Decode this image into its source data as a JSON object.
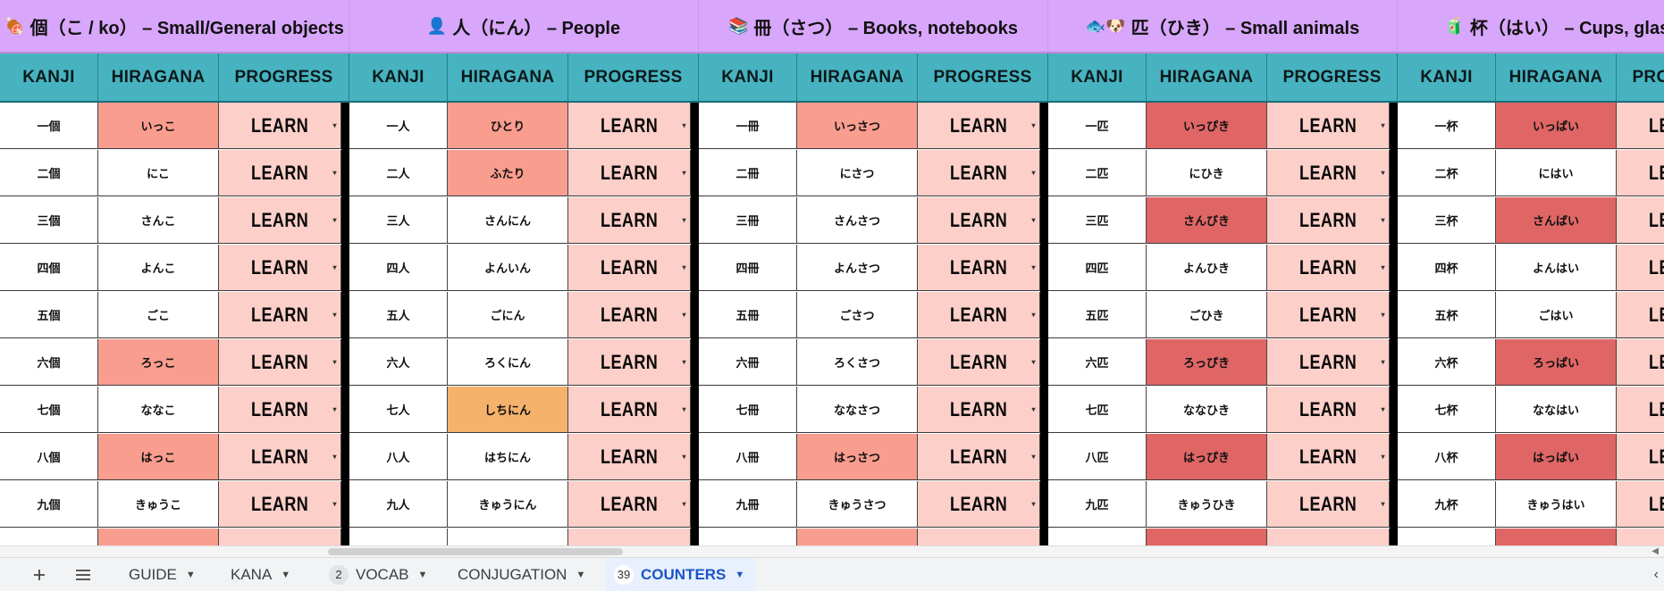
{
  "groups": [
    {
      "emoji": "🍖",
      "title": "個（こ / ko） – Small/General objects",
      "headers": [
        "KANJI",
        "HIRAGANA",
        "PROGRESS"
      ],
      "rows": [
        {
          "kanji": "一個",
          "hiragana": "いっこ",
          "hl": "#f99d8f",
          "progress": "LEARN"
        },
        {
          "kanji": "二個",
          "hiragana": "にこ",
          "hl": "",
          "progress": "LEARN"
        },
        {
          "kanji": "三個",
          "hiragana": "さんこ",
          "hl": "",
          "progress": "LEARN"
        },
        {
          "kanji": "四個",
          "hiragana": "よんこ",
          "hl": "",
          "progress": "LEARN"
        },
        {
          "kanji": "五個",
          "hiragana": "ごこ",
          "hl": "",
          "progress": "LEARN"
        },
        {
          "kanji": "六個",
          "hiragana": "ろっこ",
          "hl": "#f99d8f",
          "progress": "LEARN"
        },
        {
          "kanji": "七個",
          "hiragana": "ななこ",
          "hl": "",
          "progress": "LEARN"
        },
        {
          "kanji": "八個",
          "hiragana": "はっこ",
          "hl": "#f99d8f",
          "progress": "LEARN"
        },
        {
          "kanji": "九個",
          "hiragana": "きゅうこ",
          "hl": "",
          "progress": "LEARN"
        },
        {
          "kanji": "",
          "hiragana": "",
          "hl": "#f99d8f",
          "progress": ""
        }
      ]
    },
    {
      "emoji": "👤",
      "title": "人（にん） – People",
      "headers": [
        "KANJI",
        "HIRAGANA",
        "PROGRESS"
      ],
      "rows": [
        {
          "kanji": "一人",
          "hiragana": "ひとり",
          "hl": "#f99d8f",
          "progress": "LEARN"
        },
        {
          "kanji": "二人",
          "hiragana": "ふたり",
          "hl": "#f99d8f",
          "progress": "LEARN"
        },
        {
          "kanji": "三人",
          "hiragana": "さんにん",
          "hl": "",
          "progress": "LEARN"
        },
        {
          "kanji": "四人",
          "hiragana": "よんいん",
          "hl": "",
          "progress": "LEARN"
        },
        {
          "kanji": "五人",
          "hiragana": "ごにん",
          "hl": "",
          "progress": "LEARN"
        },
        {
          "kanji": "六人",
          "hiragana": "ろくにん",
          "hl": "",
          "progress": "LEARN"
        },
        {
          "kanji": "七人",
          "hiragana": "しちにん",
          "hl": "#f5b26c",
          "progress": "LEARN"
        },
        {
          "kanji": "八人",
          "hiragana": "はちにん",
          "hl": "",
          "progress": "LEARN"
        },
        {
          "kanji": "九人",
          "hiragana": "きゅうにん",
          "hl": "",
          "progress": "LEARN"
        },
        {
          "kanji": "",
          "hiragana": "",
          "hl": "",
          "progress": ""
        }
      ]
    },
    {
      "emoji": "📚",
      "title": "冊（さつ） – Books, notebooks",
      "headers": [
        "KANJI",
        "HIRAGANA",
        "PROGRESS"
      ],
      "rows": [
        {
          "kanji": "一冊",
          "hiragana": "いっさつ",
          "hl": "#f99d8f",
          "progress": "LEARN"
        },
        {
          "kanji": "二冊",
          "hiragana": "にさつ",
          "hl": "",
          "progress": "LEARN"
        },
        {
          "kanji": "三冊",
          "hiragana": "さんさつ",
          "hl": "",
          "progress": "LEARN"
        },
        {
          "kanji": "四冊",
          "hiragana": "よんさつ",
          "hl": "",
          "progress": "LEARN"
        },
        {
          "kanji": "五冊",
          "hiragana": "ごさつ",
          "hl": "",
          "progress": "LEARN"
        },
        {
          "kanji": "六冊",
          "hiragana": "ろくさつ",
          "hl": "",
          "progress": "LEARN"
        },
        {
          "kanji": "七冊",
          "hiragana": "ななさつ",
          "hl": "",
          "progress": "LEARN"
        },
        {
          "kanji": "八冊",
          "hiragana": "はっさつ",
          "hl": "#f99d8f",
          "progress": "LEARN"
        },
        {
          "kanji": "九冊",
          "hiragana": "きゅうさつ",
          "hl": "",
          "progress": "LEARN"
        },
        {
          "kanji": "",
          "hiragana": "",
          "hl": "#f99d8f",
          "progress": ""
        }
      ]
    },
    {
      "emoji": "🐟🐶",
      "title": "匹（ひき） – Small animals",
      "headers": [
        "KANJI",
        "HIRAGANA",
        "PROGRESS"
      ],
      "rows": [
        {
          "kanji": "一匹",
          "hiragana": "いっぴき",
          "hl": "#e06666",
          "progress": "LEARN"
        },
        {
          "kanji": "二匹",
          "hiragana": "にひき",
          "hl": "",
          "progress": "LEARN"
        },
        {
          "kanji": "三匹",
          "hiragana": "さんびき",
          "hl": "#e06666",
          "progress": "LEARN"
        },
        {
          "kanji": "四匹",
          "hiragana": "よんひき",
          "hl": "",
          "progress": "LEARN"
        },
        {
          "kanji": "五匹",
          "hiragana": "ごひき",
          "hl": "",
          "progress": "LEARN"
        },
        {
          "kanji": "六匹",
          "hiragana": "ろっぴき",
          "hl": "#e06666",
          "progress": "LEARN"
        },
        {
          "kanji": "七匹",
          "hiragana": "ななひき",
          "hl": "",
          "progress": "LEARN"
        },
        {
          "kanji": "八匹",
          "hiragana": "はっぴき",
          "hl": "#e06666",
          "progress": "LEARN"
        },
        {
          "kanji": "九匹",
          "hiragana": "きゅうひき",
          "hl": "",
          "progress": "LEARN"
        },
        {
          "kanji": "",
          "hiragana": "",
          "hl": "#e06666",
          "progress": ""
        }
      ]
    },
    {
      "emoji": "🧃",
      "title": "杯（はい） – Cups, glasses",
      "headers": [
        "KANJI",
        "HIRAGANA",
        "PROGRESS"
      ],
      "rows": [
        {
          "kanji": "一杯",
          "hiragana": "いっぱい",
          "hl": "#e06666",
          "progress": "LEARN"
        },
        {
          "kanji": "二杯",
          "hiragana": "にはい",
          "hl": "",
          "progress": "LEARN"
        },
        {
          "kanji": "三杯",
          "hiragana": "さんばい",
          "hl": "#e06666",
          "progress": "LEARN"
        },
        {
          "kanji": "四杯",
          "hiragana": "よんはい",
          "hl": "",
          "progress": "LEARN"
        },
        {
          "kanji": "五杯",
          "hiragana": "ごはい",
          "hl": "",
          "progress": "LEARN"
        },
        {
          "kanji": "六杯",
          "hiragana": "ろっぱい",
          "hl": "#e06666",
          "progress": "LEARN"
        },
        {
          "kanji": "七杯",
          "hiragana": "ななはい",
          "hl": "",
          "progress": "LEARN"
        },
        {
          "kanji": "八杯",
          "hiragana": "はっぱい",
          "hl": "#e06666",
          "progress": "LEARN"
        },
        {
          "kanji": "九杯",
          "hiragana": "きゅうはい",
          "hl": "",
          "progress": "LEARN"
        },
        {
          "kanji": "",
          "hiragana": "",
          "hl": "#e06666",
          "progress": ""
        }
      ]
    }
  ],
  "tabs": [
    {
      "label": "GUIDE",
      "badge": "",
      "active": false
    },
    {
      "label": "KANA",
      "badge": "",
      "active": false
    },
    {
      "label": "VOCAB",
      "badge": "2",
      "active": false
    },
    {
      "label": "CONJUGATION",
      "badge": "",
      "active": false
    },
    {
      "label": "COUNTERS",
      "badge": "39",
      "active": true
    }
  ],
  "toolbar": {
    "add_icon": "plus-icon",
    "list_icon": "menu-icon"
  }
}
